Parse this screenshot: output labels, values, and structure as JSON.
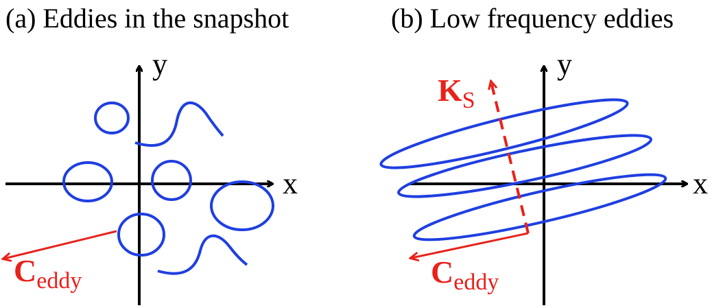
{
  "panels": [
    {
      "title": "(a) Eddies in the snapshot",
      "x_label": "x",
      "y_label": "y",
      "vectors": [
        {
          "symbol": "C",
          "subscript": "eddy"
        }
      ]
    },
    {
      "title": "(b) Low frequency eddies",
      "x_label": "x",
      "y_label": "y",
      "vectors": [
        {
          "symbol": "K",
          "subscript": "S"
        },
        {
          "symbol": "C",
          "subscript": "eddy"
        }
      ]
    }
  ]
}
